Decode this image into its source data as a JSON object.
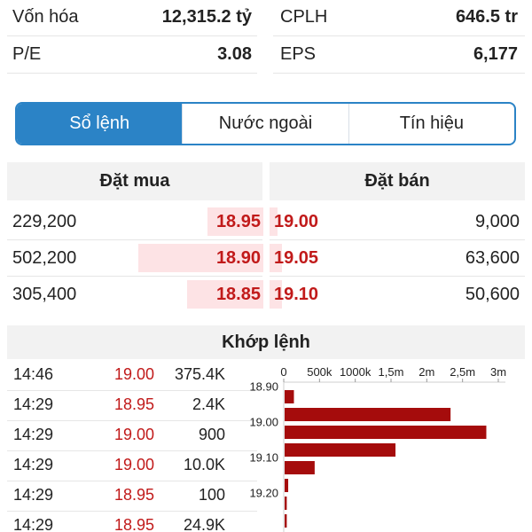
{
  "stats": [
    {
      "left_label": "Vốn hóa",
      "left_value": "12,315.2 tỷ",
      "right_label": "CPLH",
      "right_value": "646.5 tr"
    },
    {
      "left_label": "P/E",
      "left_value": "3.08",
      "right_label": "EPS",
      "right_value": "6,177"
    }
  ],
  "tabs": [
    {
      "label": "Sổ lệnh",
      "active": true
    },
    {
      "label": "Nước ngoài",
      "active": false
    },
    {
      "label": "Tín hiệu",
      "active": false
    }
  ],
  "order_book": {
    "bid_header": "Đặt mua",
    "ask_header": "Đặt bán",
    "rows": [
      {
        "bid_volume": "229,200",
        "bid_price": "18.95",
        "ask_price": "19.00",
        "ask_volume": "9,000",
        "bid_fill": 0.22,
        "ask_fill": 0.03
      },
      {
        "bid_volume": "502,200",
        "bid_price": "18.90",
        "ask_price": "19.05",
        "ask_volume": "63,600",
        "bid_fill": 0.49,
        "ask_fill": 0.05
      },
      {
        "bid_volume": "305,400",
        "bid_price": "18.85",
        "ask_price": "19.10",
        "ask_volume": "50,600",
        "bid_fill": 0.3,
        "ask_fill": 0.05
      }
    ],
    "accent_color": "#c11a1a",
    "bar_color": "#fde3e5"
  },
  "matches": {
    "header": "Khớp lệnh",
    "trades": [
      {
        "time": "14:46",
        "price": "19.00",
        "volume": "375.4K"
      },
      {
        "time": "14:29",
        "price": "18.95",
        "volume": "2.4K"
      },
      {
        "time": "14:29",
        "price": "19.00",
        "volume": "900"
      },
      {
        "time": "14:29",
        "price": "19.00",
        "volume": "10.0K"
      },
      {
        "time": "14:29",
        "price": "18.95",
        "volume": "100"
      },
      {
        "time": "14:29",
        "price": "18.95",
        "volume": "24.9K"
      }
    ]
  },
  "chart_data": {
    "type": "bar",
    "orientation": "horizontal",
    "x_ticks": [
      "0",
      "500k",
      "1000k",
      "1,5m",
      "2m",
      "2,5m",
      "3m"
    ],
    "x_tick_values": [
      0,
      500000,
      1000000,
      1500000,
      2000000,
      2500000,
      3000000
    ],
    "xlim": [
      0,
      3000000
    ],
    "y_tick_labels": [
      "18.90",
      "19.00",
      "19.10",
      "19.20"
    ],
    "values": [
      130000,
      2320000,
      2820000,
      1550000,
      420000,
      50000,
      30000,
      30000
    ],
    "bar_color": "#a50c0c"
  }
}
